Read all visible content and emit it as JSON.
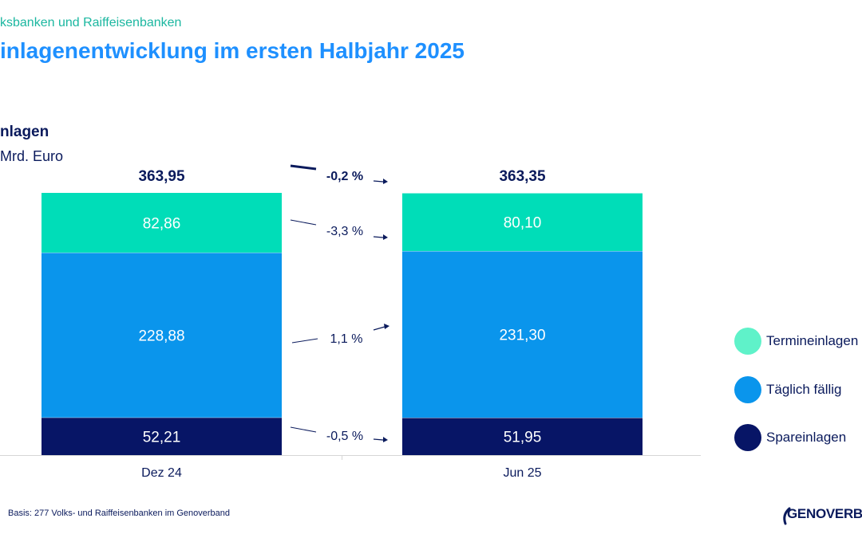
{
  "header": {
    "supertitle": "ksbanken und Raiffeisenbanken",
    "title": "inlagenentwicklung im ersten Halbjahr 2025",
    "panel_title": "nlagen",
    "unit": "Mrd. Euro"
  },
  "footnote": "Basis: 277 Volks- und Raiffeisenbanken im Genoverband",
  "logo": {
    "text": "GENOVERBA"
  },
  "colors": {
    "Termineinlagen": "#00ddb8",
    "Taeglich": "#0a95ec",
    "Spareinlagen": "#071566",
    "text_dark": "#0a1a5c",
    "title_blue": "#1e90ff"
  },
  "chart_data": {
    "type": "bar",
    "stacked": true,
    "categories": [
      "Dez 24",
      "Jun 25"
    ],
    "totals": [
      "363,95",
      "363,35"
    ],
    "ylim": [
      0,
      363.95
    ],
    "series": [
      {
        "name": "Spareinlagen",
        "values": [
          52.21,
          51.95
        ],
        "labels": [
          "52,21",
          "51,95"
        ]
      },
      {
        "name": "Täglich fällig",
        "values": [
          228.88,
          231.3
        ],
        "labels": [
          "228,88",
          "231,30"
        ]
      },
      {
        "name": "Termineinlagen",
        "values": [
          82.86,
          80.1
        ],
        "labels": [
          "82,86",
          "80,10"
        ]
      }
    ],
    "changes": {
      "total": "-0,2 %",
      "Termineinlagen": "-3,3 %",
      "Täglich fällig": "1,1 %",
      "Spareinlagen": "-0,5 %"
    },
    "legend": [
      "Termineinlagen",
      "Täglich fällig",
      "Spareinlagen"
    ],
    "legend_position": "right"
  }
}
